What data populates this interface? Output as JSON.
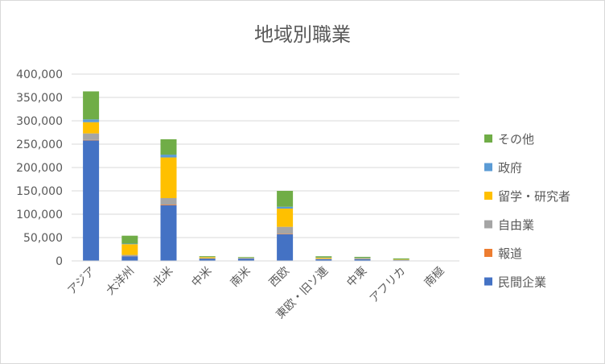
{
  "chart_data": {
    "type": "bar",
    "stacked": true,
    "title": "地域別職業",
    "xlabel": "",
    "ylabel": "",
    "ylim": [
      0,
      400000
    ],
    "yticks": [
      "400,000",
      "350,000",
      "300,000",
      "250,000",
      "200,000",
      "150,000",
      "100,000",
      "50,000",
      "0"
    ],
    "ytick_values": [
      400000,
      350000,
      300000,
      250000,
      200000,
      150000,
      100000,
      50000,
      0
    ],
    "grid": true,
    "legend_position": "right",
    "categories": [
      "アジア",
      "大洋州",
      "北米",
      "中米",
      "南米",
      "西欧",
      "東欧・旧ソ連",
      "中東",
      "アフリカ",
      "南極"
    ],
    "series": [
      {
        "name": "民間企業",
        "color": "#4472c4",
        "values": [
          258000,
          10000,
          119000,
          5000,
          5000,
          57000,
          3500,
          4000,
          1500,
          0
        ]
      },
      {
        "name": "報道",
        "color": "#ed7d31",
        "values": [
          1000,
          300,
          1500,
          200,
          200,
          1000,
          200,
          200,
          100,
          0
        ]
      },
      {
        "name": "自由業",
        "color": "#a5a5a5",
        "values": [
          14000,
          2500,
          14000,
          500,
          500,
          15000,
          1000,
          500,
          200,
          0
        ]
      },
      {
        "name": "留学・研究者",
        "color": "#ffc000",
        "values": [
          24000,
          23000,
          87000,
          2500,
          500,
          39000,
          2000,
          1000,
          1000,
          0
        ]
      },
      {
        "name": "政府",
        "color": "#5b9bd5",
        "values": [
          6000,
          1200,
          6000,
          500,
          500,
          4000,
          800,
          1000,
          500,
          0
        ]
      },
      {
        "name": "その他",
        "color": "#70ad47",
        "values": [
          60000,
          17000,
          33000,
          1500,
          1500,
          34000,
          2500,
          2000,
          2000,
          0
        ]
      }
    ]
  }
}
